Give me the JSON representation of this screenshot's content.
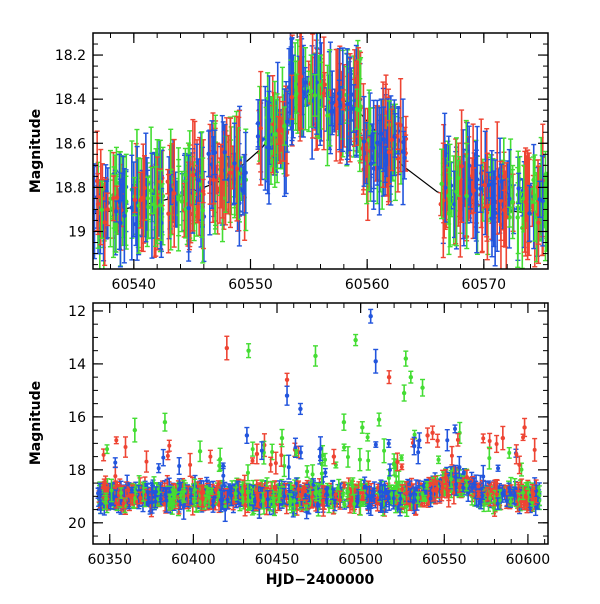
{
  "chart_data": [
    {
      "type": "scatter",
      "panel": "top",
      "title": "",
      "xlabel": "",
      "ylabel": "Magnitude",
      "xlim": [
        60536.5,
        60575.5
      ],
      "ylim": [
        19.17,
        18.1
      ],
      "y_inverted": true,
      "grid": false,
      "legend": "none",
      "x_ticks": [
        60540,
        60550,
        60560,
        60570
      ],
      "x_tick_labels": [
        "60540",
        "60550",
        "60560",
        "60570"
      ],
      "y_ticks": [
        18.2,
        18.4,
        18.6,
        18.8,
        19.0
      ],
      "y_tick_labels": [
        "18.2",
        "18.4",
        "18.6",
        "18.8",
        "19"
      ],
      "series_colors": [
        "#ee4433",
        "#44dd33",
        "#2255dd"
      ],
      "model_curve": {
        "color": "#000000",
        "x": [
          60536.5,
          60540,
          60544,
          60548,
          60551,
          60553,
          60555,
          60557,
          60559,
          60561,
          60563,
          60566,
          60570,
          60575.5
        ],
        "y": [
          18.92,
          18.89,
          18.84,
          18.76,
          18.62,
          18.47,
          18.38,
          18.37,
          18.44,
          18.56,
          18.7,
          18.82,
          18.89,
          18.93
        ]
      },
      "data_segments": [
        {
          "x_start": 60536.6,
          "x_end": 60539.4,
          "y_center": 18.87,
          "spread": 0.16
        },
        {
          "x_start": 60539.8,
          "x_end": 60542.6,
          "y_center": 18.86,
          "spread": 0.16
        },
        {
          "x_start": 60542.9,
          "x_end": 60546.1,
          "y_center": 18.83,
          "spread": 0.16
        },
        {
          "x_start": 60546.4,
          "x_end": 60549.6,
          "y_center": 18.75,
          "spread": 0.15
        },
        {
          "x_start": 60550.6,
          "x_end": 60553.2,
          "y_center": 18.55,
          "spread": 0.14
        },
        {
          "x_start": 60553.3,
          "x_end": 60556.4,
          "y_center": 18.36,
          "spread": 0.09
        },
        {
          "x_start": 60556.5,
          "x_end": 60559.5,
          "y_center": 18.42,
          "spread": 0.1
        },
        {
          "x_start": 60559.6,
          "x_end": 60563.4,
          "y_center": 18.62,
          "spread": 0.14
        },
        {
          "x_start": 60566.3,
          "x_end": 60569.5,
          "y_center": 18.8,
          "spread": 0.16
        },
        {
          "x_start": 60569.7,
          "x_end": 60572.6,
          "y_center": 18.84,
          "spread": 0.16
        },
        {
          "x_start": 60572.9,
          "x_end": 60575.4,
          "y_center": 18.87,
          "spread": 0.16
        }
      ]
    },
    {
      "type": "scatter",
      "panel": "bottom",
      "title": "",
      "xlabel": "HJD−2400000",
      "ylabel": "Magnitude",
      "xlim": [
        60340,
        60612
      ],
      "ylim": [
        20.8,
        11.7
      ],
      "y_inverted": true,
      "grid": false,
      "legend": "none",
      "x_ticks": [
        60350,
        60400,
        60450,
        60500,
        60550,
        60600
      ],
      "x_tick_labels": [
        "60350",
        "60400",
        "60450",
        "60500",
        "60550",
        "60600"
      ],
      "y_ticks": [
        12,
        14,
        16,
        18,
        20
      ],
      "y_tick_labels": [
        "12",
        "14",
        "16",
        "18",
        "20"
      ],
      "series_colors": [
        "#ee4433",
        "#44dd33",
        "#2255dd"
      ],
      "baseline": {
        "x_start": 60343,
        "x_end": 60607,
        "y_center": 19.0,
        "spread": 0.55
      },
      "brightening": {
        "x_start": 60535,
        "x_end": 60578,
        "peak_x": 60556,
        "peak_y": 18.4
      },
      "outliers": [
        {
          "x": 60506,
          "y": 12.2,
          "color": "#2255dd"
        },
        {
          "x": 60509,
          "y": 13.9,
          "color": "#2255dd"
        },
        {
          "x": 60420,
          "y": 13.4,
          "color": "#ee4433"
        },
        {
          "x": 60433,
          "y": 13.5,
          "color": "#44dd33"
        },
        {
          "x": 60473,
          "y": 13.7,
          "color": "#44dd33"
        },
        {
          "x": 60497,
          "y": 13.1,
          "color": "#44dd33"
        },
        {
          "x": 60365,
          "y": 16.5,
          "color": "#44dd33"
        },
        {
          "x": 60383,
          "y": 16.2,
          "color": "#44dd33"
        },
        {
          "x": 60456,
          "y": 14.6,
          "color": "#ee4433"
        },
        {
          "x": 60517,
          "y": 14.5,
          "color": "#ee4433"
        },
        {
          "x": 60527,
          "y": 13.8,
          "color": "#44dd33"
        },
        {
          "x": 60530,
          "y": 14.5,
          "color": "#44dd33"
        },
        {
          "x": 60526,
          "y": 15.1,
          "color": "#44dd33"
        },
        {
          "x": 60537,
          "y": 14.9,
          "color": "#44dd33"
        },
        {
          "x": 60456,
          "y": 15.2,
          "color": "#2255dd"
        },
        {
          "x": 60464,
          "y": 15.7,
          "color": "#2255dd"
        },
        {
          "x": 60432,
          "y": 16.7,
          "color": "#2255dd"
        },
        {
          "x": 60453,
          "y": 16.8,
          "color": "#44dd33"
        },
        {
          "x": 60490,
          "y": 16.2,
          "color": "#44dd33"
        },
        {
          "x": 60501,
          "y": 16.4,
          "color": "#44dd33"
        },
        {
          "x": 60511,
          "y": 16.1,
          "color": "#44dd33"
        },
        {
          "x": 60540,
          "y": 16.7,
          "color": "#ee4433"
        },
        {
          "x": 60543,
          "y": 16.6,
          "color": "#ee4433"
        },
        {
          "x": 60546,
          "y": 16.9,
          "color": "#ee4433"
        },
        {
          "x": 60585,
          "y": 16.8,
          "color": "#ee4433"
        },
        {
          "x": 60598,
          "y": 16.4,
          "color": "#ee4433"
        },
        {
          "x": 60404,
          "y": 17.3,
          "color": "#44dd33"
        },
        {
          "x": 60416,
          "y": 17.6,
          "color": "#44dd33"
        },
        {
          "x": 60438,
          "y": 17.4,
          "color": "#ee4433"
        },
        {
          "x": 60476,
          "y": 17.2,
          "color": "#2255dd"
        },
        {
          "x": 60484,
          "y": 17.5,
          "color": "#ee4433"
        },
        {
          "x": 60520,
          "y": 17.8,
          "color": "#44dd33"
        },
        {
          "x": 60532,
          "y": 17.1,
          "color": "#2255dd"
        },
        {
          "x": 60522,
          "y": 17.7,
          "color": "#ee4433"
        },
        {
          "x": 60559,
          "y": 17.9,
          "color": "#2255dd"
        }
      ]
    }
  ]
}
